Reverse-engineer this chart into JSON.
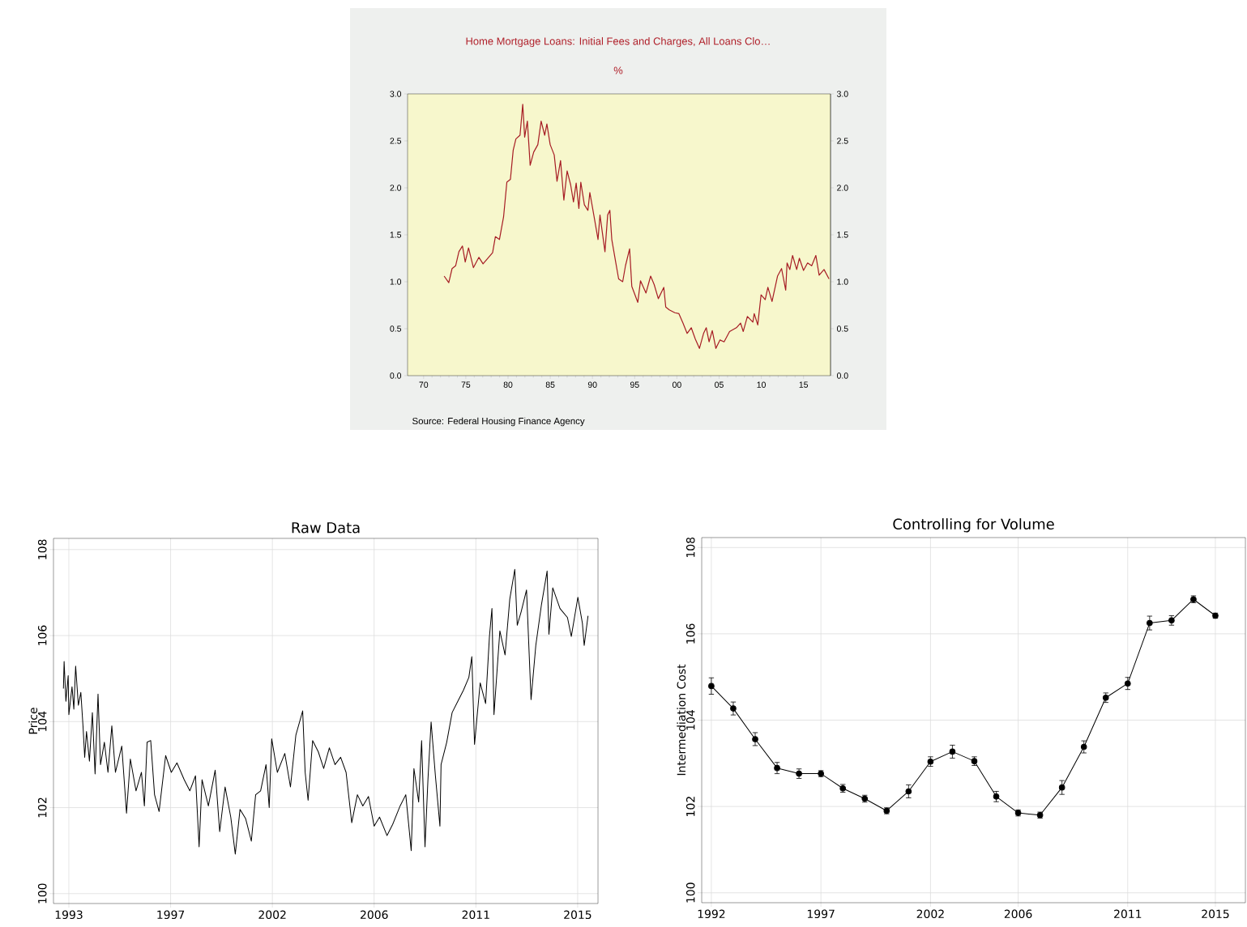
{
  "chart_data": [
    {
      "type": "line",
      "title": "Home Mortgage Loans: Initial Fees and Charges, All Loans Clo…",
      "subtitle": "%",
      "annotations": [
        "Source:  Federal Housing Finance Agency"
      ],
      "x": [
        1972.43,
        1972.98,
        1973.37,
        1973.79,
        1974.18,
        1974.6,
        1974.93,
        1975.32,
        1975.9,
        1976.55,
        1977.04,
        1978.17,
        1978.5,
        1978.98,
        1979.47,
        1979.86,
        1980.28,
        1980.61,
        1980.93,
        1981.42,
        1981.74,
        1981.97,
        1982.29,
        1982.62,
        1983.04,
        1983.53,
        1983.92,
        1984.34,
        1984.6,
        1984.99,
        1985.47,
        1985.8,
        1986.22,
        1986.61,
        1987.0,
        1987.42,
        1987.75,
        1988.07,
        1988.39,
        1988.62,
        1989.04,
        1989.46,
        1989.69,
        1990.18,
        1990.66,
        1990.89,
        1991.48,
        1991.8,
        1992.06,
        1992.29,
        1992.77,
        1993.1,
        1993.58,
        1993.91,
        1994.4,
        1994.66,
        1995.37,
        1995.69,
        1996.34,
        1996.89,
        1997.31,
        1997.8,
        1998.45,
        1998.68,
        1999.1,
        1999.75,
        2000.24,
        2000.72,
        2001.21,
        2001.7,
        2002.18,
        2002.67,
        2003.16,
        2003.48,
        2003.81,
        2004.19,
        2004.62,
        2005.1,
        2005.59,
        2006.24,
        2007.05,
        2007.54,
        2007.86,
        2008.35,
        2009.0,
        2009.16,
        2009.58,
        2009.97,
        2010.46,
        2010.78,
        2011.27,
        2011.92,
        2012.4,
        2012.89,
        2013.05,
        2013.38,
        2013.7,
        2014.19,
        2014.51,
        2015.0,
        2015.48,
        2015.97,
        2016.46,
        2016.85,
        2017.43,
        2018.02
      ],
      "series": [
        {
          "color": "#a61c24",
          "values": [
            1.06,
            0.99,
            1.14,
            1.17,
            1.32,
            1.38,
            1.21,
            1.36,
            1.15,
            1.26,
            1.19,
            1.31,
            1.48,
            1.45,
            1.69,
            2.06,
            2.09,
            2.4,
            2.52,
            2.56,
            2.89,
            2.54,
            2.71,
            2.24,
            2.38,
            2.46,
            2.71,
            2.56,
            2.68,
            2.46,
            2.35,
            2.07,
            2.29,
            1.87,
            2.18,
            2.03,
            1.85,
            2.05,
            1.78,
            2.06,
            1.82,
            1.76,
            1.95,
            1.7,
            1.45,
            1.71,
            1.32,
            1.71,
            1.76,
            1.45,
            1.2,
            1.03,
            1.0,
            1.17,
            1.35,
            0.95,
            0.78,
            1.01,
            0.88,
            1.06,
            0.97,
            0.82,
            0.94,
            0.73,
            0.7,
            0.67,
            0.66,
            0.56,
            0.45,
            0.51,
            0.39,
            0.29,
            0.45,
            0.51,
            0.36,
            0.48,
            0.29,
            0.38,
            0.36,
            0.47,
            0.51,
            0.56,
            0.47,
            0.63,
            0.57,
            0.66,
            0.54,
            0.86,
            0.81,
            0.94,
            0.79,
            1.06,
            1.14,
            0.91,
            1.2,
            1.13,
            1.28,
            1.13,
            1.25,
            1.12,
            1.2,
            1.17,
            1.28,
            1.07,
            1.13,
            1.03
          ]
        }
      ],
      "xlim": [
        1968.1,
        2018.2
      ],
      "xticks": [
        {
          "value": 1970,
          "label": "70"
        },
        {
          "value": 1975,
          "label": "75"
        },
        {
          "value": 1980,
          "label": "80"
        },
        {
          "value": 1985,
          "label": "85"
        },
        {
          "value": 1990,
          "label": "90"
        },
        {
          "value": 1995,
          "label": "95"
        },
        {
          "value": 2000,
          "label": "00"
        },
        {
          "value": 2005,
          "label": "05"
        },
        {
          "value": 2010,
          "label": "10"
        },
        {
          "value": 2015,
          "label": "15"
        }
      ],
      "ylim": [
        0,
        3
      ],
      "yticks": [
        {
          "value": 0,
          "label": "0.0"
        },
        {
          "value": 0.5,
          "label": "0.5"
        },
        {
          "value": 1,
          "label": "1.0"
        },
        {
          "value": 1.5,
          "label": "1.5"
        },
        {
          "value": 2,
          "label": "2.0"
        },
        {
          "value": 2.5,
          "label": "2.5"
        },
        {
          "value": 3,
          "label": "3.0"
        }
      ],
      "y2lim": [
        0,
        3
      ],
      "y2ticks": [
        {
          "value": 0,
          "label": "0.0"
        },
        {
          "value": 0.5,
          "label": "0.5"
        },
        {
          "value": 1,
          "label": "1.0"
        },
        {
          "value": 1.5,
          "label": "1.5"
        },
        {
          "value": 2,
          "label": "2.0"
        },
        {
          "value": 2.5,
          "label": "2.5"
        },
        {
          "value": 3,
          "label": "3.0"
        }
      ]
    },
    {
      "type": "line",
      "title": "Raw Data",
      "ylabel": "Price",
      "grid": true,
      "x": [
        1992.76,
        1992.79,
        1992.87,
        1992.97,
        1993.0,
        1993.14,
        1993.22,
        1993.3,
        1993.42,
        1993.53,
        1993.63,
        1993.7,
        1993.78,
        1993.91,
        1994.04,
        1994.16,
        1994.29,
        1994.4,
        1994.57,
        1994.73,
        1994.9,
        1995.06,
        1995.34,
        1995.55,
        1995.72,
        1995.97,
        1996.21,
        1996.34,
        1996.46,
        1996.62,
        1996.79,
        1996.99,
        1997.28,
        1997.53,
        1997.78,
        1998.1,
        1998.35,
        1998.6,
        1998.76,
        1998.89,
        1999.17,
        1999.47,
        1999.67,
        1999.91,
        2000.16,
        2000.36,
        2000.57,
        2000.82,
        2001.07,
        2001.26,
        2001.48,
        2001.72,
        2001.86,
        2001.97,
        2002.22,
        2002.55,
        2002.8,
        2003.04,
        2003.34,
        2003.45,
        2003.58,
        2003.78,
        2004.03,
        2004.27,
        2004.52,
        2004.77,
        2005.02,
        2005.26,
        2005.51,
        2005.76,
        2006.0,
        2006.25,
        2006.5,
        2006.74,
        2007.07,
        2007.32,
        2007.65,
        2007.9,
        2008.14,
        2008.26,
        2008.47,
        2008.6,
        2008.75,
        2008.88,
        2009.02,
        2009.21,
        2009.41,
        2009.46,
        2009.71,
        2009.95,
        2010.2,
        2010.45,
        2010.69,
        2010.82,
        2010.94,
        2011.19,
        2011.43,
        2011.6,
        2011.71,
        2011.8,
        2012.06,
        2012.29,
        2012.5,
        2012.72,
        2012.83,
        2013.0,
        2013.24,
        2013.44,
        2013.65,
        2013.9,
        2014.15,
        2014.23,
        2014.4,
        2014.72,
        2015.05,
        2015.22,
        2015.51,
        2015.71,
        2015.79,
        2015.96
      ],
      "series": [
        {
          "color": "#000000",
          "values": [
            104.77,
            105.4,
            104.47,
            105.07,
            104.16,
            104.81,
            104.29,
            105.29,
            104.38,
            104.68,
            103.86,
            103.17,
            103.77,
            103.08,
            104.21,
            102.78,
            104.64,
            103.0,
            103.52,
            102.82,
            103.9,
            102.82,
            103.43,
            101.87,
            103.13,
            102.39,
            102.82,
            102.04,
            103.52,
            103.56,
            102.3,
            101.91,
            103.21,
            102.82,
            103.04,
            102.65,
            102.39,
            102.74,
            101.09,
            102.65,
            102.04,
            102.87,
            101.44,
            102.48,
            101.78,
            100.92,
            101.96,
            101.74,
            101.22,
            102.3,
            102.39,
            103.0,
            102.0,
            103.6,
            102.82,
            103.26,
            102.48,
            103.69,
            104.25,
            102.82,
            102.17,
            103.56,
            103.3,
            102.91,
            103.39,
            103.0,
            103.17,
            102.82,
            101.65,
            102.3,
            102.04,
            102.26,
            101.57,
            101.78,
            101.35,
            101.61,
            102.04,
            102.3,
            101.0,
            102.91,
            102.13,
            103.56,
            101.09,
            102.65,
            103.99,
            102.74,
            101.57,
            103.0,
            103.52,
            104.21,
            104.47,
            104.73,
            105.03,
            105.51,
            103.47,
            104.9,
            104.42,
            105.98,
            106.63,
            104.16,
            106.11,
            105.55,
            106.85,
            107.54,
            106.24,
            106.55,
            107.06,
            104.51,
            105.77,
            106.72,
            107.5,
            106.03,
            107.11,
            106.63,
            106.42,
            105.98,
            106.89,
            106.29,
            105.77,
            106.46
          ]
        }
      ],
      "xlim": [
        1992.32,
        2016.4
      ],
      "xticks": [
        {
          "value": 1993,
          "label": "1993"
        },
        {
          "value": 1997.5,
          "label": "1997"
        },
        {
          "value": 2002,
          "label": "2002"
        },
        {
          "value": 2006.5,
          "label": "2006"
        },
        {
          "value": 2011,
          "label": "2011"
        },
        {
          "value": 2015.5,
          "label": "2015"
        }
      ],
      "ylim": [
        99.77,
        108.26
      ],
      "yticks": [
        100,
        102,
        104,
        106,
        108
      ]
    },
    {
      "type": "line",
      "title": "Controlling for Volume",
      "ylabel": "Intermediation Cost",
      "grid": true,
      "marker": "circle",
      "x": [
        1992,
        1993,
        1994,
        1995,
        1996,
        1997,
        1998,
        1999,
        2000,
        2001,
        2002,
        2003,
        2004,
        2005,
        2006,
        2007,
        2008,
        2009,
        2010,
        2011,
        2012,
        2013,
        2014,
        2015
      ],
      "series": [
        {
          "color": "#000000",
          "values": [
            104.79,
            104.27,
            103.56,
            102.89,
            102.76,
            102.76,
            102.42,
            102.18,
            101.9,
            102.35,
            103.04,
            103.27,
            103.05,
            102.23,
            101.85,
            101.8,
            102.44,
            103.38,
            104.52,
            104.85,
            106.25,
            106.31,
            106.8,
            106.42
          ],
          "errors": [
            0.19,
            0.15,
            0.15,
            0.13,
            0.11,
            0.07,
            0.09,
            0.08,
            0.07,
            0.15,
            0.11,
            0.15,
            0.1,
            0.12,
            0.07,
            0.07,
            0.16,
            0.14,
            0.11,
            0.14,
            0.16,
            0.11,
            0.08,
            0.06
          ]
        }
      ],
      "xlim": [
        1991.56,
        2016.37
      ],
      "xticks": [
        1992,
        1997,
        2002,
        2006,
        2011,
        2015
      ],
      "ylim": [
        99.77,
        108.23
      ],
      "yticks": [
        100,
        102,
        104,
        106,
        108
      ]
    }
  ]
}
